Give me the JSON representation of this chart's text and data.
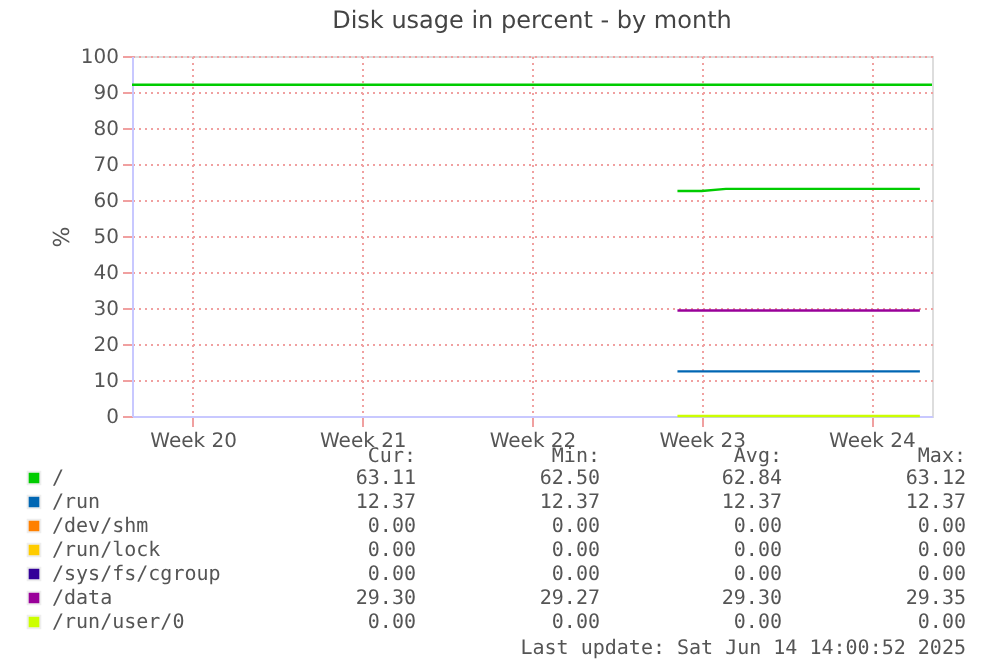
{
  "chart_data": {
    "type": "line",
    "title": "Disk usage in percent - by month",
    "ylabel": "%",
    "categories": [
      null,
      null,
      "Week 20",
      null,
      null,
      null,
      null,
      null,
      null,
      "Week 21",
      null,
      null,
      null,
      null,
      null,
      null,
      "Week 22",
      null,
      null,
      null,
      null,
      null,
      null,
      "Week 23",
      null,
      null,
      null,
      null,
      null,
      null,
      "Week 24",
      null,
      null
    ],
    "ylim": [
      0,
      100
    ],
    "yticks": [
      0,
      10,
      20,
      30,
      40,
      50,
      60,
      70,
      80,
      90,
      100
    ],
    "grid": true,
    "legend": "bottom",
    "marker": "none",
    "line_style": "solid",
    "series": [
      {
        "name": "/",
        "color": "#00cc00",
        "values": [
          null,
          null,
          null,
          null,
          null,
          null,
          null,
          null,
          null,
          null,
          null,
          null,
          null,
          null,
          null,
          null,
          null,
          null,
          null,
          null,
          null,
          null,
          62.5,
          62.5,
          63.1,
          63.1,
          63.1,
          63.1,
          63.1,
          63.1,
          63.1,
          63.1,
          63.1
        ]
      },
      {
        "name": "/run",
        "color": "#0066b3",
        "values": [
          null,
          null,
          null,
          null,
          null,
          null,
          null,
          null,
          null,
          null,
          null,
          null,
          null,
          null,
          null,
          null,
          null,
          null,
          null,
          null,
          null,
          null,
          12.4,
          12.4,
          12.4,
          12.4,
          12.4,
          12.4,
          12.4,
          12.4,
          12.4,
          12.4,
          12.4
        ]
      },
      {
        "name": "/dev/shm",
        "color": "#ff8000",
        "values": [
          null,
          null,
          null,
          null,
          null,
          null,
          null,
          null,
          null,
          null,
          null,
          null,
          null,
          null,
          null,
          null,
          null,
          null,
          null,
          null,
          null,
          null,
          null,
          null,
          null,
          null,
          null,
          null,
          null,
          null,
          null,
          null,
          null
        ]
      },
      {
        "name": "/run/lock",
        "color": "#ffcc00",
        "values": [
          null,
          null,
          null,
          null,
          null,
          null,
          null,
          null,
          null,
          null,
          null,
          null,
          null,
          null,
          null,
          null,
          null,
          null,
          null,
          null,
          null,
          null,
          null,
          null,
          null,
          null,
          null,
          null,
          null,
          null,
          null,
          null,
          null
        ]
      },
      {
        "name": "/sys/fs/cgroup",
        "color": "#330099",
        "values": [
          null,
          null,
          null,
          null,
          null,
          null,
          null,
          null,
          null,
          null,
          null,
          null,
          null,
          null,
          null,
          null,
          null,
          null,
          null,
          null,
          null,
          null,
          null,
          null,
          null,
          null,
          null,
          null,
          null,
          null,
          null,
          null,
          null
        ]
      },
      {
        "name": "/data",
        "color": "#990099",
        "values": [
          null,
          null,
          null,
          null,
          null,
          null,
          null,
          null,
          null,
          null,
          null,
          null,
          null,
          null,
          null,
          null,
          null,
          null,
          null,
          null,
          null,
          null,
          29.3,
          29.3,
          29.3,
          29.3,
          29.3,
          29.3,
          29.3,
          29.3,
          29.3,
          29.3,
          29.3
        ]
      },
      {
        "name": "/run/user/0",
        "color": "#ccff00",
        "values": [
          null,
          null,
          null,
          null,
          null,
          null,
          null,
          null,
          null,
          null,
          null,
          null,
          null,
          null,
          null,
          null,
          null,
          null,
          null,
          null,
          null,
          null,
          0,
          0,
          0,
          0,
          0,
          0,
          0,
          0,
          0,
          0,
          0
        ]
      }
    ],
    "ref_lines": [
      {
        "axis": "y",
        "value": 92,
        "label": null,
        "color": "#00cc00"
      }
    ],
    "annotations": [
      "Cur: Min: Avg: Max:",
      "63.11 62.50 62.84 63.12",
      "12.37 12.37 12.37 12.37",
      "0.00 0.00 0.00 0.00",
      "0.00 0.00 0.00 0.00",
      "0.00 0.00 0.00 0.00",
      "29.30 29.27 29.30 29.35",
      "0.00 0.00 0.00 0.00",
      "Last update: Sat Jun 14 14:00:52 2025"
    ]
  }
}
